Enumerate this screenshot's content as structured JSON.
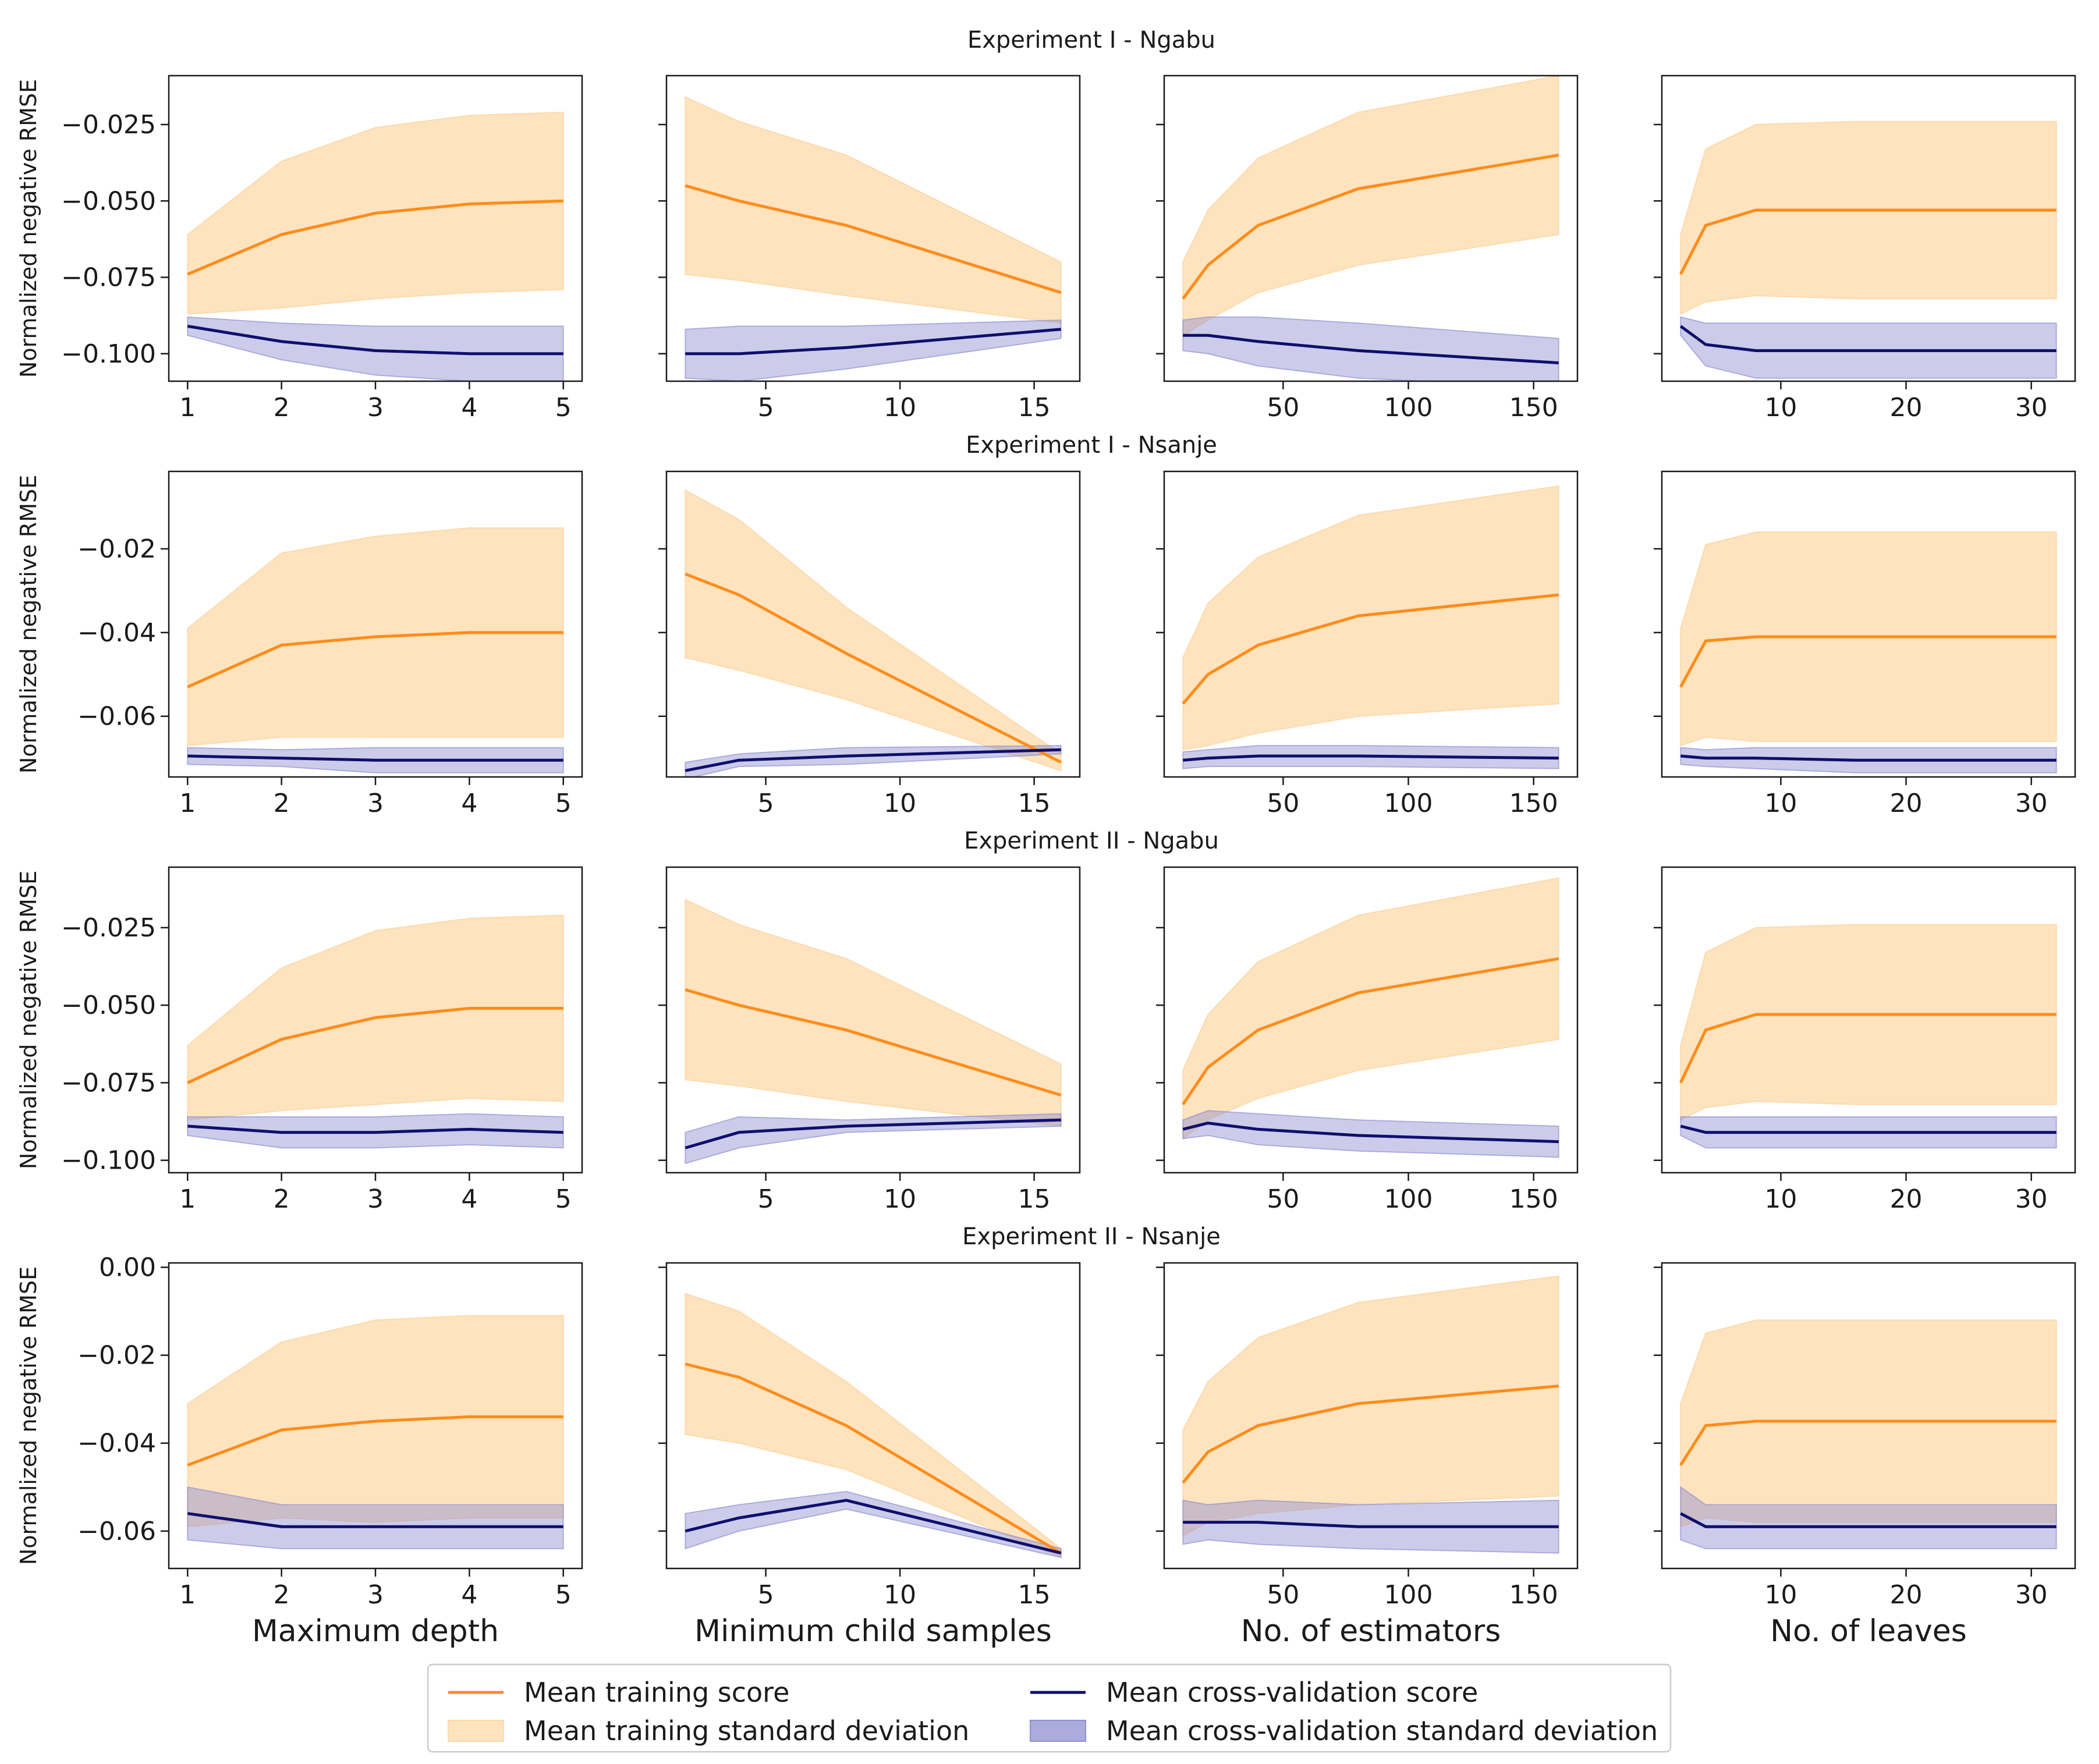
{
  "colors": {
    "train_line": "#ff8c1a",
    "train_band": "#fdd9aa",
    "cv_line": "#0f0f6e",
    "cv_band": "#8f8fd1"
  },
  "legend": {
    "items": [
      {
        "label": "Mean training score",
        "kind": "line",
        "color": "#ff8c1a"
      },
      {
        "label": "Mean training standard deviation",
        "kind": "band",
        "color": "#fdd9aa"
      },
      {
        "label": "Mean cross-validation score",
        "kind": "line",
        "color": "#0f0f6e"
      },
      {
        "label": "Mean cross-validation standard deviation",
        "kind": "band",
        "color": "#8f8fd1"
      }
    ]
  },
  "chart_data": {
    "type": "line",
    "ylabel": "Normalized negative RMSE",
    "columns": [
      {
        "xlabel": "Maximum depth",
        "x": [
          1,
          2,
          3,
          4,
          5
        ],
        "xlim": [
          0.8,
          5.2
        ],
        "xticks": [
          1,
          2,
          3,
          4,
          5
        ]
      },
      {
        "xlabel": "Minimum child samples",
        "x": [
          2,
          4,
          8,
          16
        ],
        "xlim": [
          1.3,
          16.7
        ],
        "xticks": [
          5,
          10,
          15
        ]
      },
      {
        "xlabel": "No. of estimators",
        "x": [
          10,
          20,
          40,
          80,
          160
        ],
        "xlim": [
          2.5,
          167.5
        ],
        "xticks": [
          50,
          100,
          150
        ]
      },
      {
        "xlabel": "No. of leaves",
        "x": [
          2,
          4,
          8,
          16,
          32
        ],
        "xlim": [
          0.5,
          33.5
        ],
        "xticks": [
          10,
          20,
          30
        ]
      }
    ],
    "rows": [
      {
        "title": "Experiment I - Ngabu",
        "ylim": [
          -0.109,
          -0.009
        ],
        "yticks": [
          -0.1,
          -0.075,
          -0.05,
          -0.025
        ],
        "yticklabels": [
          "−0.100",
          "−0.075",
          "−0.050",
          "−0.025"
        ],
        "panels": [
          {
            "train": [
              -0.074,
              -0.061,
              -0.054,
              -0.051,
              -0.05
            ],
            "train_std": [
              0.013,
              0.024,
              0.028,
              0.029,
              0.029
            ],
            "cv": [
              -0.091,
              -0.096,
              -0.099,
              -0.1,
              -0.1
            ],
            "cv_std": [
              0.003,
              0.006,
              0.008,
              0.009,
              0.009
            ]
          },
          {
            "train": [
              -0.045,
              -0.05,
              -0.058,
              -0.08
            ],
            "train_std": [
              0.029,
              0.026,
              0.023,
              0.01
            ],
            "cv": [
              -0.1,
              -0.1,
              -0.098,
              -0.092
            ],
            "cv_std": [
              0.008,
              0.009,
              0.007,
              0.003
            ]
          },
          {
            "train": [
              -0.082,
              -0.071,
              -0.058,
              -0.046,
              -0.035
            ],
            "train_std": [
              0.012,
              0.018,
              0.022,
              0.025,
              0.026
            ],
            "cv": [
              -0.094,
              -0.094,
              -0.096,
              -0.099,
              -0.103
            ],
            "cv_std": [
              0.005,
              0.006,
              0.008,
              0.009,
              0.008
            ]
          },
          {
            "train": [
              -0.074,
              -0.058,
              -0.053,
              -0.053,
              -0.053
            ],
            "train_std": [
              0.013,
              0.025,
              0.028,
              0.029,
              0.029
            ],
            "cv": [
              -0.091,
              -0.097,
              -0.099,
              -0.099,
              -0.099
            ],
            "cv_std": [
              0.003,
              0.007,
              0.009,
              0.009,
              0.009
            ]
          }
        ]
      },
      {
        "title": "Experiment I - Nsanje",
        "ylim": [
          -0.0745,
          -0.0015
        ],
        "yticks": [
          -0.06,
          -0.04,
          -0.02
        ],
        "yticklabels": [
          "−0.06",
          "−0.04",
          "−0.02"
        ],
        "panels": [
          {
            "train": [
              -0.053,
              -0.043,
              -0.041,
              -0.04,
              -0.04
            ],
            "train_std": [
              0.014,
              0.022,
              0.024,
              0.025,
              0.025
            ],
            "cv": [
              -0.0695,
              -0.07,
              -0.0705,
              -0.0705,
              -0.0705
            ],
            "cv_std": [
              0.002,
              0.002,
              0.003,
              0.003,
              0.003
            ]
          },
          {
            "train": [
              -0.026,
              -0.031,
              -0.045,
              -0.071
            ],
            "train_std": [
              0.02,
              0.018,
              0.011,
              0.002
            ],
            "cv": [
              -0.073,
              -0.0705,
              -0.0695,
              -0.068
            ],
            "cv_std": [
              0.002,
              0.0015,
              0.002,
              0.001
            ]
          },
          {
            "train": [
              -0.057,
              -0.05,
              -0.043,
              -0.036,
              -0.031
            ],
            "train_std": [
              0.011,
              0.017,
              0.021,
              0.024,
              0.026
            ],
            "cv": [
              -0.0705,
              -0.07,
              -0.0695,
              -0.0695,
              -0.07
            ],
            "cv_std": [
              0.002,
              0.002,
              0.0025,
              0.0025,
              0.0025
            ]
          },
          {
            "train": [
              -0.053,
              -0.042,
              -0.041,
              -0.041,
              -0.041
            ],
            "train_std": [
              0.014,
              0.023,
              0.025,
              0.025,
              0.025
            ],
            "cv": [
              -0.0695,
              -0.07,
              -0.07,
              -0.0705,
              -0.0705
            ],
            "cv_std": [
              0.002,
              0.002,
              0.0025,
              0.003,
              0.003
            ]
          }
        ]
      },
      {
        "title": "Experiment II - Ngabu",
        "ylim": [
          -0.104,
          -0.0055
        ],
        "yticks": [
          -0.1,
          -0.075,
          -0.05,
          -0.025
        ],
        "yticklabels": [
          "−0.100",
          "−0.075",
          "−0.050",
          "−0.025"
        ],
        "panels": [
          {
            "train": [
              -0.075,
              -0.061,
              -0.054,
              -0.051,
              -0.051
            ],
            "train_std": [
              0.012,
              0.023,
              0.028,
              0.029,
              0.03
            ],
            "cv": [
              -0.089,
              -0.091,
              -0.091,
              -0.09,
              -0.091
            ],
            "cv_std": [
              0.003,
              0.005,
              0.005,
              0.005,
              0.005
            ]
          },
          {
            "train": [
              -0.045,
              -0.05,
              -0.058,
              -0.079
            ],
            "train_std": [
              0.029,
              0.026,
              0.023,
              0.01
            ],
            "cv": [
              -0.096,
              -0.091,
              -0.089,
              -0.087
            ],
            "cv_std": [
              0.005,
              0.005,
              0.002,
              0.002
            ]
          },
          {
            "train": [
              -0.082,
              -0.07,
              -0.058,
              -0.046,
              -0.035
            ],
            "train_std": [
              0.011,
              0.017,
              0.022,
              0.025,
              0.026
            ],
            "cv": [
              -0.09,
              -0.088,
              -0.09,
              -0.092,
              -0.094
            ],
            "cv_std": [
              0.003,
              0.004,
              0.005,
              0.005,
              0.005
            ]
          },
          {
            "train": [
              -0.075,
              -0.058,
              -0.053,
              -0.053,
              -0.053
            ],
            "train_std": [
              0.012,
              0.025,
              0.028,
              0.029,
              0.029
            ],
            "cv": [
              -0.089,
              -0.091,
              -0.091,
              -0.091,
              -0.091
            ],
            "cv_std": [
              0.003,
              0.005,
              0.005,
              0.005,
              0.005
            ]
          }
        ]
      },
      {
        "title": "Experiment II - Nsanje",
        "ylim": [
          -0.0685,
          0.001
        ],
        "yticks": [
          -0.06,
          -0.04,
          -0.02,
          0.0
        ],
        "yticklabels": [
          "−0.06",
          "−0.04",
          "−0.02",
          "0.00"
        ],
        "panels": [
          {
            "train": [
              -0.045,
              -0.037,
              -0.035,
              -0.034,
              -0.034
            ],
            "train_std": [
              0.014,
              0.02,
              0.023,
              0.023,
              0.023
            ],
            "cv": [
              -0.056,
              -0.059,
              -0.059,
              -0.059,
              -0.059
            ],
            "cv_std": [
              0.006,
              0.005,
              0.005,
              0.005,
              0.005
            ]
          },
          {
            "train": [
              -0.022,
              -0.025,
              -0.036,
              -0.065
            ],
            "train_std": [
              0.016,
              0.015,
              0.01,
              0.001
            ],
            "cv": [
              -0.06,
              -0.057,
              -0.053,
              -0.065
            ],
            "cv_std": [
              0.004,
              0.003,
              0.002,
              0.001
            ]
          },
          {
            "train": [
              -0.049,
              -0.042,
              -0.036,
              -0.031,
              -0.027
            ],
            "train_std": [
              0.012,
              0.016,
              0.02,
              0.023,
              0.025
            ],
            "cv": [
              -0.058,
              -0.058,
              -0.058,
              -0.059,
              -0.059
            ],
            "cv_std": [
              0.005,
              0.004,
              0.005,
              0.005,
              0.006
            ]
          },
          {
            "train": [
              -0.045,
              -0.036,
              -0.035,
              -0.035,
              -0.035
            ],
            "train_std": [
              0.014,
              0.021,
              0.023,
              0.023,
              0.023
            ],
            "cv": [
              -0.056,
              -0.059,
              -0.059,
              -0.059,
              -0.059
            ],
            "cv_std": [
              0.006,
              0.005,
              0.005,
              0.005,
              0.005
            ]
          }
        ]
      }
    ]
  }
}
